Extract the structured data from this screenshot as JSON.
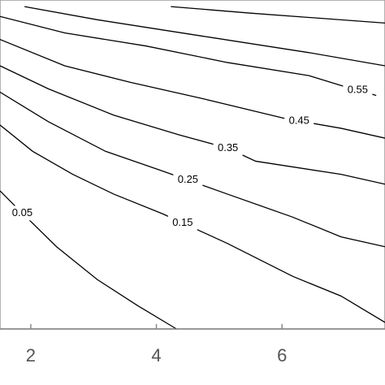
{
  "chart_data": {
    "type": "contour",
    "color": "#000000",
    "xlim": [
      1.51,
      7.64
    ],
    "ylim": [
      0,
      1
    ],
    "xticks": [
      2,
      4,
      6
    ],
    "series": [
      {
        "name": "0.05",
        "x": [
          1.51,
          1.77,
          2.41,
          3.06,
          3.71,
          4.32
        ],
        "y": [
          0.42,
          0.37,
          0.25,
          0.15,
          0.07,
          0
        ]
      },
      {
        "name": "0.15",
        "x": [
          1.51,
          2.03,
          2.67,
          3.32,
          4.1,
          5.13,
          6.17,
          6.94,
          7.64
        ],
        "y": [
          0.62,
          0.54,
          0.47,
          0.41,
          0.35,
          0.26,
          0.16,
          0.1,
          0.02
        ]
      },
      {
        "name": "0.25",
        "x": [
          1.51,
          2.28,
          3.19,
          4.1,
          5.13,
          6.17,
          6.94,
          7.64
        ],
        "y": [
          0.72,
          0.63,
          0.54,
          0.48,
          0.41,
          0.34,
          0.28,
          0.25
        ]
      },
      {
        "name": "0.35",
        "x": [
          1.51,
          2.28,
          3.32,
          4.36,
          5.13,
          5.58,
          6.94,
          7.64
        ],
        "y": [
          0.8,
          0.73,
          0.65,
          0.59,
          0.55,
          0.51,
          0.47,
          0.44
        ]
      },
      {
        "name": "0.45",
        "x": [
          1.51,
          2.54,
          3.58,
          4.74,
          6.04,
          6.94,
          7.64
        ],
        "y": [
          0.88,
          0.8,
          0.75,
          0.7,
          0.64,
          0.61,
          0.58
        ]
      },
      {
        "name": "0.55",
        "x": [
          1.51,
          2.54,
          3.84,
          5.13,
          6.43,
          6.94,
          7.5
        ],
        "y": [
          0.95,
          0.9,
          0.86,
          0.81,
          0.77,
          0.74,
          0.71
        ]
      },
      {
        "x": [
          1.9,
          3.06,
          4.74,
          6.43,
          7.64
        ],
        "y": [
          0.98,
          0.94,
          0.89,
          0.84,
          0.8
        ]
      },
      {
        "x": [
          4.23,
          5.5,
          7.64
        ],
        "y": [
          0.98,
          0.96,
          0.93
        ]
      }
    ]
  }
}
